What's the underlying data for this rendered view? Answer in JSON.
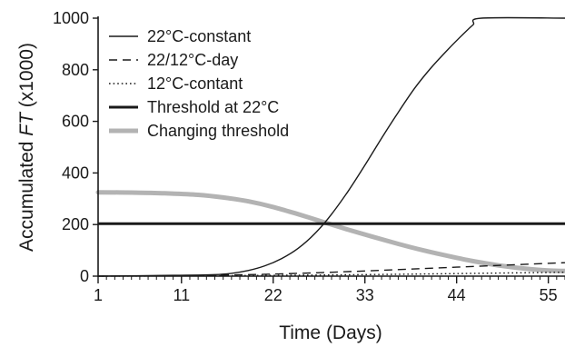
{
  "chart_data": {
    "type": "line",
    "xlabel": "Time (Days)",
    "ylabel": {
      "prefix": "Accumulated ",
      "italic": "FT",
      "suffix": " (x1000)"
    },
    "xlim": [
      1,
      57
    ],
    "ylim": [
      0,
      1000
    ],
    "xticks": [
      1,
      11,
      22,
      33,
      44,
      55
    ],
    "yticks": [
      0,
      200,
      400,
      600,
      800,
      1000
    ],
    "grid": false,
    "legend_position": "top-left",
    "series": [
      {
        "name": "22°C-constant",
        "color": "#1a1a1a",
        "dash": "solid",
        "width": "thin",
        "x": [
          1,
          10,
          15,
          17,
          19,
          21,
          23,
          25,
          27,
          29,
          31,
          33,
          35,
          37,
          39,
          41,
          43,
          45,
          46,
          47,
          57
        ],
        "y": [
          0,
          3,
          6,
          11,
          22,
          40,
          68,
          108,
          165,
          240,
          330,
          430,
          535,
          635,
          730,
          810,
          880,
          945,
          975,
          1000,
          1000
        ]
      },
      {
        "name": "22/12°C-day",
        "color": "#1a1a1a",
        "dash": "dashed",
        "width": "thin",
        "x": [
          1,
          11,
          22,
          33,
          44,
          57
        ],
        "y": [
          0,
          2,
          8,
          20,
          35,
          52
        ]
      },
      {
        "name": "12°C-contant",
        "color": "#1a1a1a",
        "dash": "dotted",
        "width": "thin",
        "x": [
          1,
          11,
          22,
          33,
          44,
          57
        ],
        "y": [
          0,
          1,
          3,
          6,
          10,
          15
        ]
      },
      {
        "name": "Threshold at 22°C",
        "color": "#1a1a1a",
        "dash": "solid",
        "width": "thick",
        "x": [
          1,
          57
        ],
        "y": [
          203,
          203
        ]
      },
      {
        "name": "Changing threshold",
        "color": "#b3b3b3",
        "dash": "solid",
        "width": "extra-thick",
        "x": [
          1,
          5,
          9,
          13,
          16,
          19,
          22,
          25,
          28,
          31,
          34,
          37,
          40,
          43,
          46,
          49,
          52,
          55,
          57
        ],
        "y": [
          325,
          324,
          321,
          315,
          305,
          290,
          268,
          240,
          210,
          180,
          152,
          125,
          100,
          78,
          58,
          42,
          30,
          22,
          20
        ]
      }
    ]
  }
}
